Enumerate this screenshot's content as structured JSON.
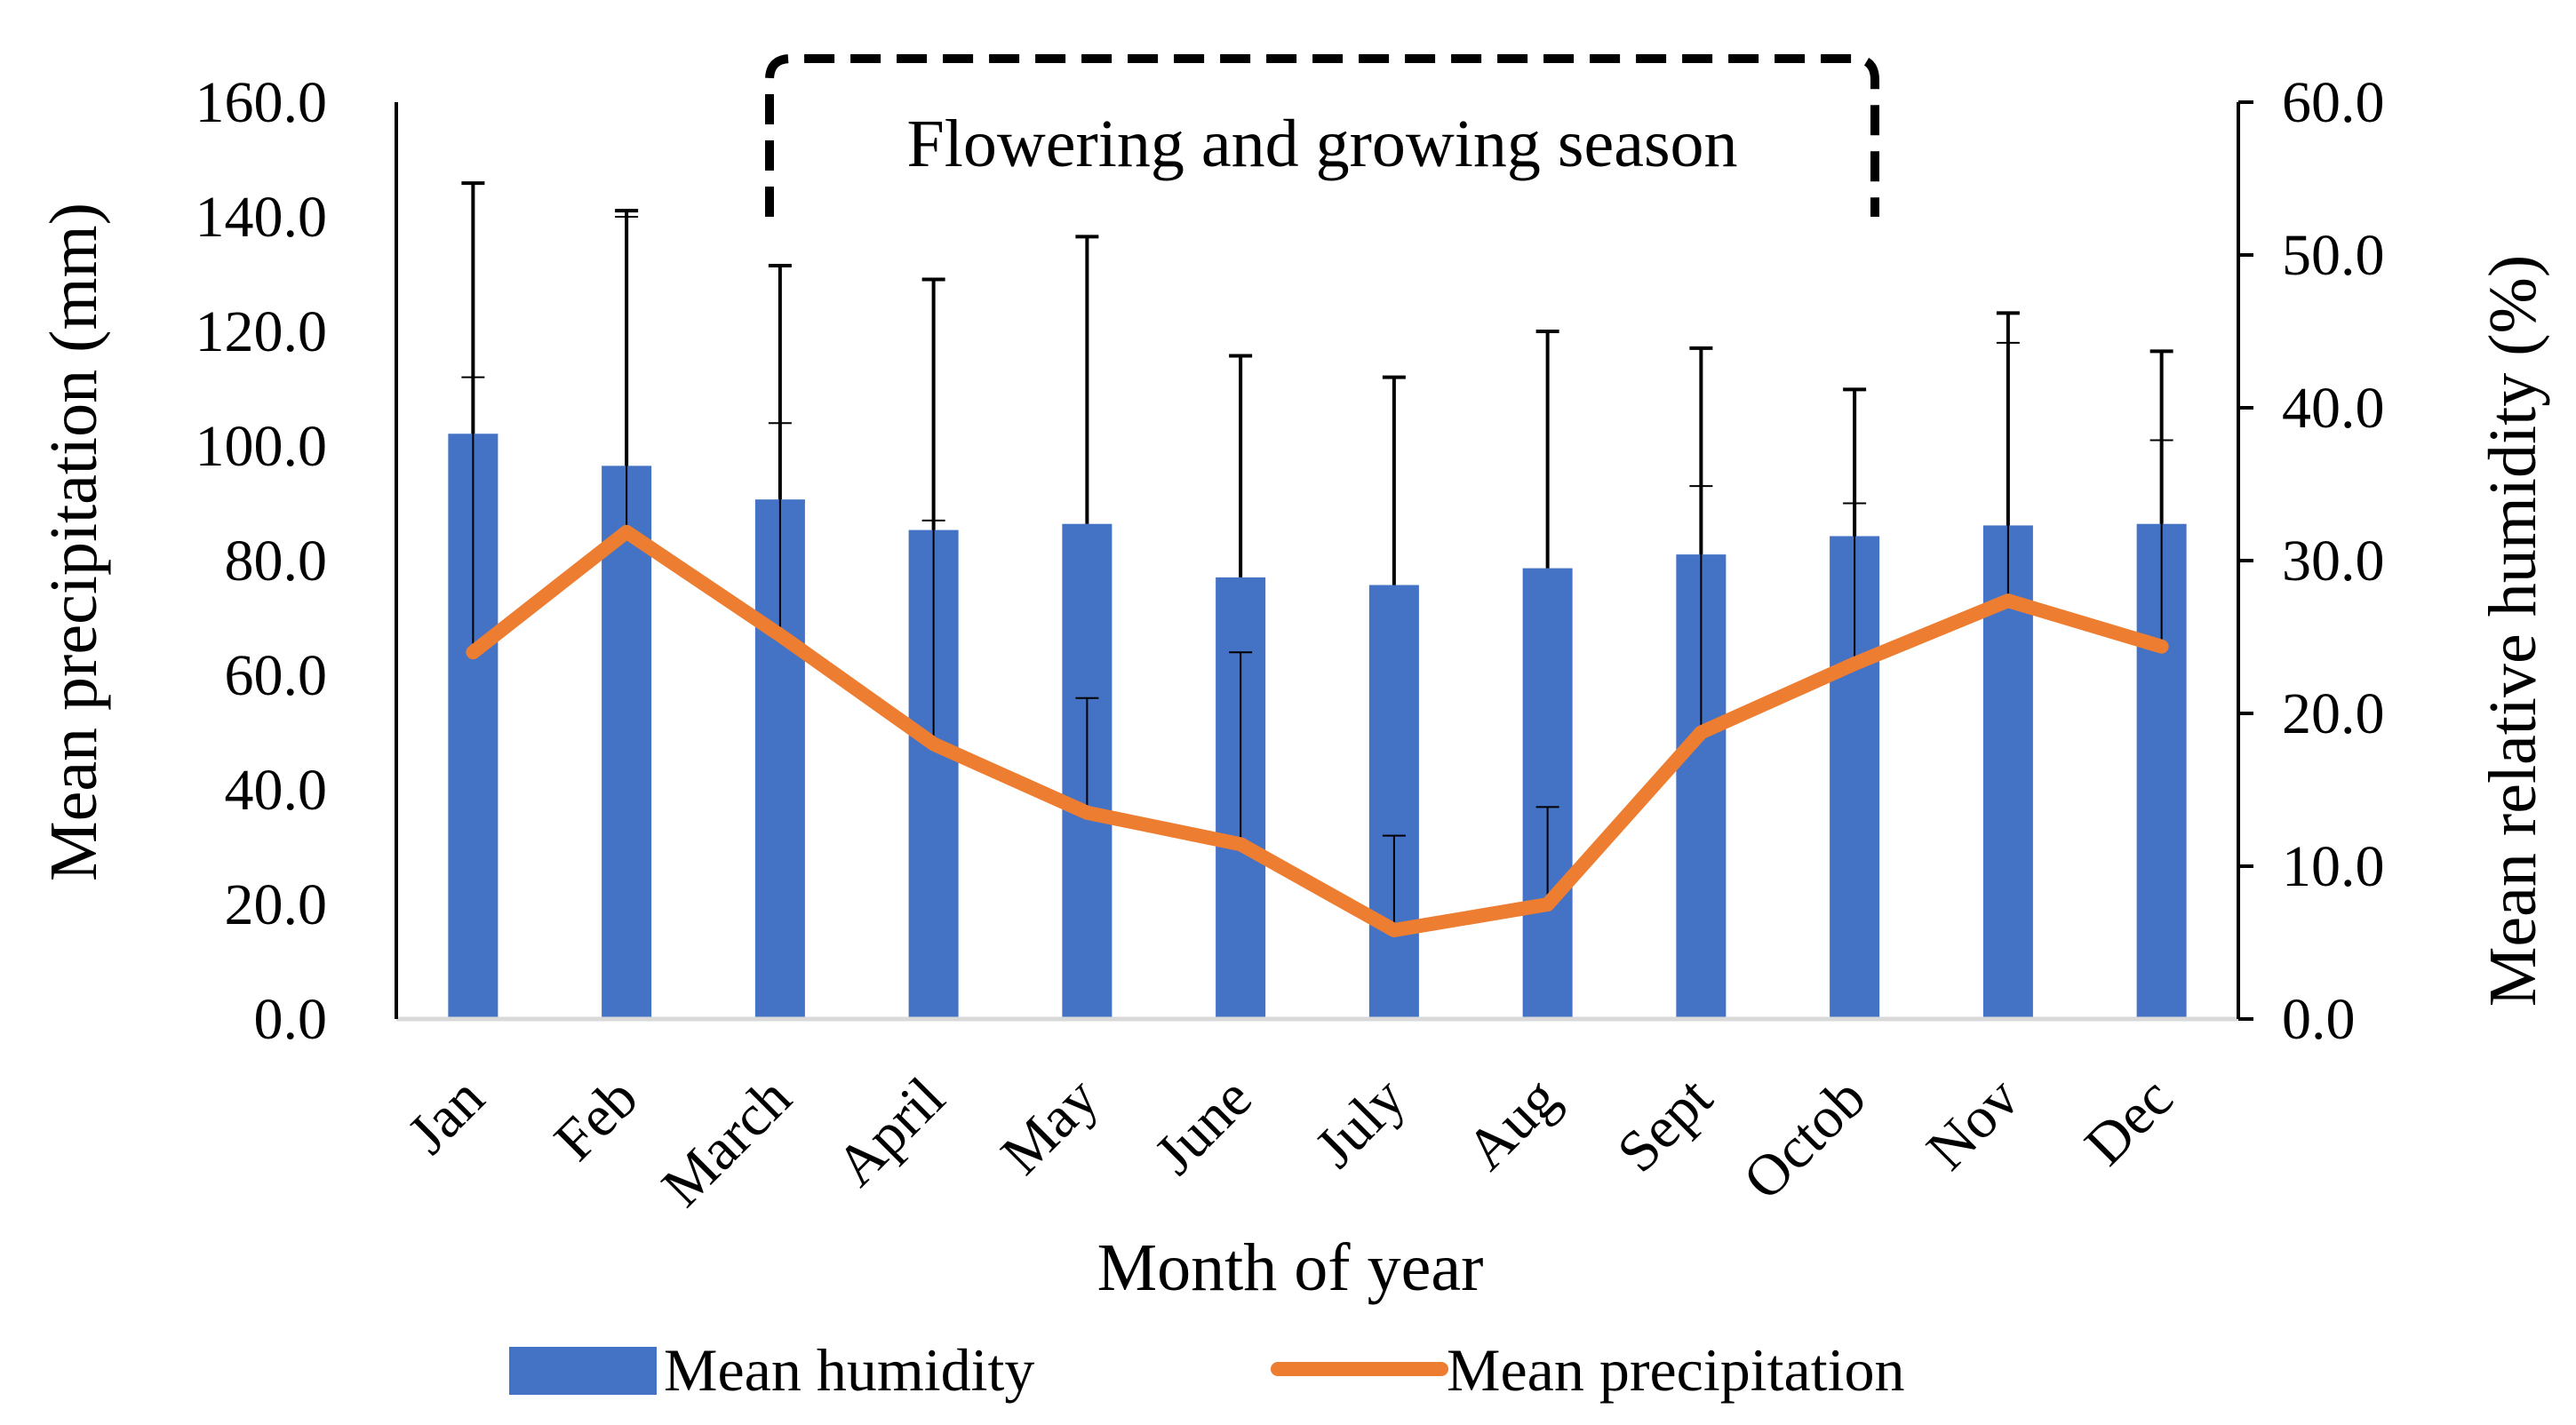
{
  "chart_data": {
    "type": "bar+line",
    "title": "",
    "xlabel": "Month of year",
    "ylabel_left": "Mean precipitation (mm)",
    "ylabel_right": "Mean relative humidity (%)",
    "ylim_left": [
      0,
      160
    ],
    "ylim_right": [
      0,
      60
    ],
    "yticks_left": [
      "0.0",
      "20.0",
      "40.0",
      "60.0",
      "80.0",
      "100.0",
      "120.0",
      "140.0",
      "160.0"
    ],
    "yticks_right": [
      "0.0",
      "10.0",
      "20.0",
      "30.0",
      "40.0",
      "50.0",
      "60.0"
    ],
    "categories": [
      "Jan",
      "Feb",
      "March",
      "April",
      "May",
      "June",
      "July",
      "Aug",
      "Sept",
      "Octob",
      "Nov",
      "Dec"
    ],
    "grid": false,
    "legend_position": "bottom",
    "series": [
      {
        "name": "Mean humidity",
        "type": "bar",
        "axis": "right",
        "color": "#4472C4",
        "values": [
          38.3,
          36.2,
          34.0,
          32.0,
          32.4,
          28.9,
          28.4,
          29.5,
          30.4,
          31.6,
          32.3,
          32.4
        ],
        "error_upper": [
          54.7,
          52.9,
          49.3,
          48.4,
          51.2,
          43.4,
          42.0,
          45.0,
          43.9,
          41.2,
          46.2,
          43.7
        ]
      },
      {
        "name": "Mean precipitation",
        "type": "line",
        "axis": "left",
        "color": "#ED7D31",
        "values": [
          64.0,
          85.0,
          67.0,
          48.0,
          36.0,
          30.5,
          15.5,
          20.0,
          50.0,
          62.0,
          73.0,
          65.0
        ],
        "error_upper": [
          112.0,
          140.0,
          104.0,
          87.0,
          56.0,
          64.0,
          32.0,
          37.0,
          93.0,
          90.0,
          118.0,
          101.0
        ]
      }
    ],
    "annotation": {
      "text": "Flowering and growing season",
      "span": [
        "March",
        "Octob"
      ],
      "style": "dashed-bracket"
    }
  }
}
